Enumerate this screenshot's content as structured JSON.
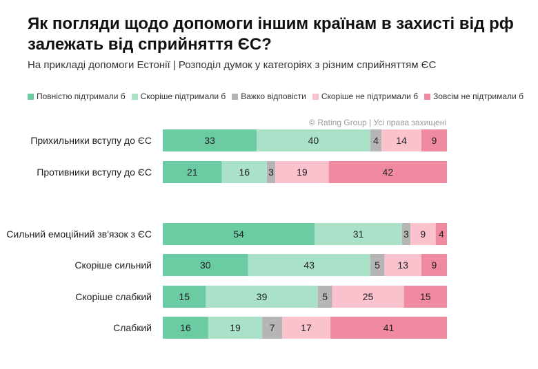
{
  "title": "Як погляди щодо допомоги іншим країнам в захисті від рф залежать від сприйняття ЄС?",
  "subtitle": "На прикладі допомоги Естонії | Розподіл думок у категоріях з різним сприйняттям ЄС",
  "source": "© Rating Group | Усі права захищені",
  "colors": [
    "#6bcba2",
    "#a9e2c8",
    "#b5b5b5",
    "#f9c2cc",
    "#f08aa0"
  ],
  "chart_data": {
    "type": "bar",
    "stacked": "100%",
    "orientation": "horizontal",
    "legend_position": "top",
    "categories": [
      "Прихильники вступу до ЄС",
      "Противники вступу до ЄС",
      "Сильний емоційний зв'язок з ЄС",
      "Скоріше сильний",
      "Скоріше слабкий",
      "Слабкий"
    ],
    "series": [
      {
        "name": "Повністю підтримали б",
        "values": [
          33,
          21,
          54,
          30,
          15,
          16
        ]
      },
      {
        "name": "Скоріше підтримали б",
        "values": [
          40,
          16,
          31,
          43,
          39,
          19
        ]
      },
      {
        "name": "Важко відповісти",
        "values": [
          4,
          3,
          3,
          5,
          5,
          7
        ]
      },
      {
        "name": "Скоріше не підтримали б",
        "values": [
          14,
          19,
          9,
          13,
          25,
          17
        ]
      },
      {
        "name": "Зовсім не підтримали б",
        "values": [
          9,
          42,
          4,
          9,
          15,
          41
        ]
      }
    ]
  }
}
